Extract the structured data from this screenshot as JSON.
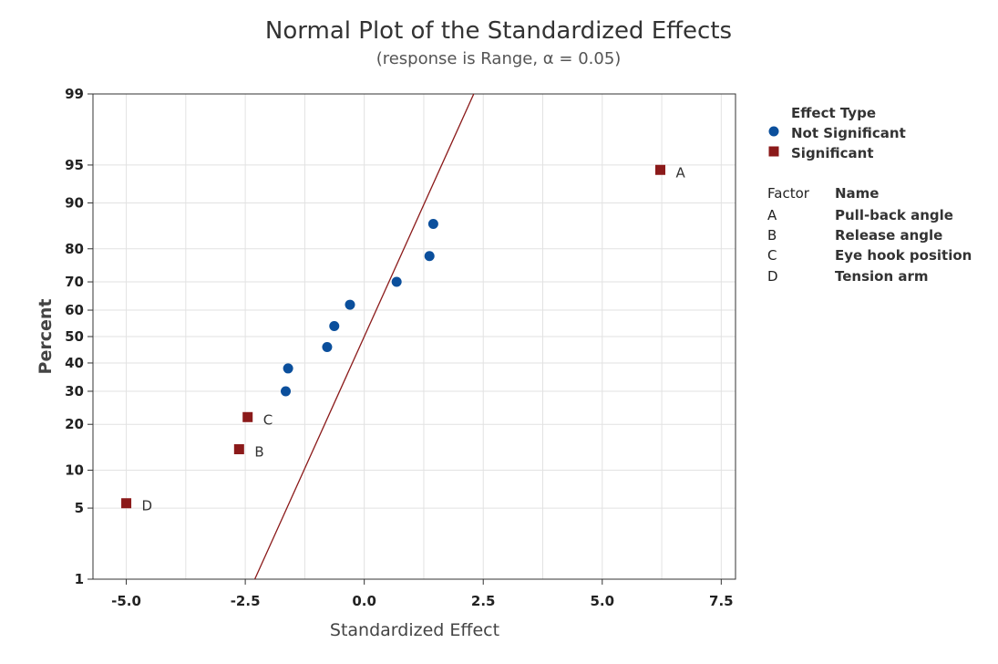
{
  "chart_data": {
    "type": "scatter",
    "title": "Normal Plot of the Standardized Effects",
    "subtitle": "(response is Range, α = 0.05)",
    "xlabel": "Standardized Effect",
    "ylabel": "Percent",
    "xlim": [
      -5.7,
      7.8
    ],
    "y_scale": "normal-probability",
    "ylim": [
      1,
      99
    ],
    "x_ticks": [
      -5.0,
      -2.5,
      0.0,
      2.5,
      5.0,
      7.5
    ],
    "x_tick_labels": [
      "-5.0",
      "-2.5",
      "0.0",
      "2.5",
      "5.0",
      "7.5"
    ],
    "y_ticks": [
      1,
      5,
      10,
      20,
      30,
      40,
      50,
      60,
      70,
      80,
      90,
      95,
      99
    ],
    "y_tick_labels": [
      "1",
      "5",
      "10",
      "20",
      "30",
      "40",
      "50",
      "60",
      "70",
      "80",
      "90",
      "95",
      "99"
    ],
    "grid": true,
    "fit_line": {
      "from": {
        "x": -2.3,
        "y": 1
      },
      "to": {
        "x": 2.3,
        "y": 99
      },
      "color": "#8B1A1A"
    },
    "series": [
      {
        "name": "Not Significant",
        "marker": "circle",
        "color": "#0B4F9C",
        "points": [
          {
            "x": -1.65,
            "y": 30
          },
          {
            "x": -1.6,
            "y": 38
          },
          {
            "x": -0.78,
            "y": 46
          },
          {
            "x": -0.63,
            "y": 54
          },
          {
            "x": -0.3,
            "y": 62
          },
          {
            "x": 0.68,
            "y": 70
          },
          {
            "x": 1.37,
            "y": 78
          },
          {
            "x": 1.45,
            "y": 86
          }
        ]
      },
      {
        "name": "Significant",
        "marker": "square",
        "color": "#8B1A1A",
        "points": [
          {
            "x": -5.0,
            "y": 5.5,
            "label": "D"
          },
          {
            "x": -2.63,
            "y": 14,
            "label": "B"
          },
          {
            "x": -2.45,
            "y": 22,
            "label": "C"
          },
          {
            "x": 6.22,
            "y": 94.5,
            "label": "A"
          }
        ]
      }
    ],
    "legend": {
      "placement": "right",
      "title": "Effect Type",
      "entries": [
        "Not Significant",
        "Significant"
      ]
    },
    "factor_table": {
      "headers": [
        "Factor",
        "Name"
      ],
      "rows": [
        [
          "A",
          "Pull-back angle"
        ],
        [
          "B",
          "Release angle"
        ],
        [
          "C",
          "Eye hook position"
        ],
        [
          "D",
          "Tension arm"
        ]
      ]
    }
  }
}
